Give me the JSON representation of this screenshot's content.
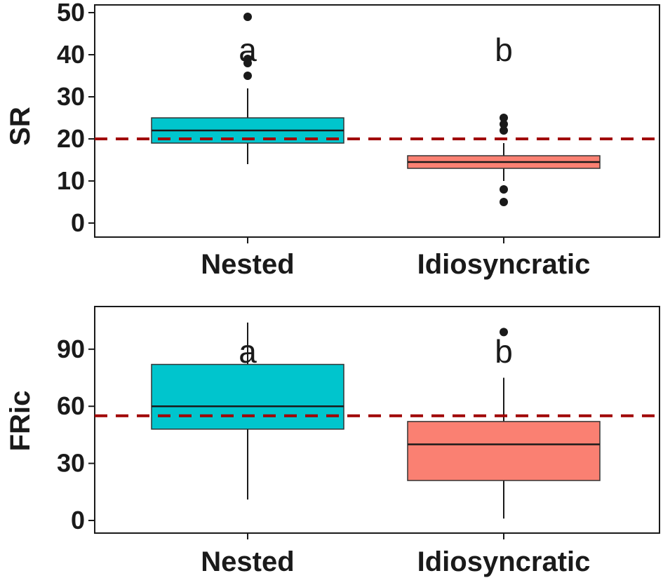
{
  "chart_data": [
    {
      "type": "box",
      "ylabel": "SR",
      "ylim": [
        0,
        50
      ],
      "yticks": [
        0,
        10,
        20,
        30,
        40,
        50
      ],
      "reference_line": 20,
      "reference_color": "#a00000",
      "categories": [
        "Nested",
        "Idiosyncratic"
      ],
      "boxes": [
        {
          "category": "Nested",
          "whisker_low": 14,
          "q1": 19,
          "median": 22,
          "q3": 25,
          "whisker_high": 32,
          "outliers": [
            35,
            38,
            39,
            49
          ],
          "letter": "a",
          "color": "#00c5cd"
        },
        {
          "category": "Idiosyncratic",
          "whisker_low": 10,
          "q1": 13,
          "median": 14.5,
          "q3": 16,
          "whisker_high": 19,
          "outliers": [
            5,
            8,
            22,
            23.5,
            25
          ],
          "letter": "b",
          "color": "#fa8072"
        }
      ]
    },
    {
      "type": "box",
      "ylabel": "FRic",
      "ylim": [
        0,
        115
      ],
      "yticks": [
        0,
        30,
        60,
        90
      ],
      "reference_line": 55,
      "reference_color": "#a00000",
      "categories": [
        "Nested",
        "Idiosyncratic"
      ],
      "boxes": [
        {
          "category": "Nested",
          "whisker_low": 11,
          "q1": 48,
          "median": 60,
          "q3": 82,
          "whisker_high": 104,
          "outliers": [],
          "letter": "a",
          "color": "#00c5cd"
        },
        {
          "category": "Idiosyncratic",
          "whisker_low": 1,
          "q1": 21,
          "median": 40,
          "q3": 52,
          "whisker_high": 75,
          "outliers": [
            99
          ],
          "letter": "b",
          "color": "#fa8072"
        }
      ]
    }
  ]
}
